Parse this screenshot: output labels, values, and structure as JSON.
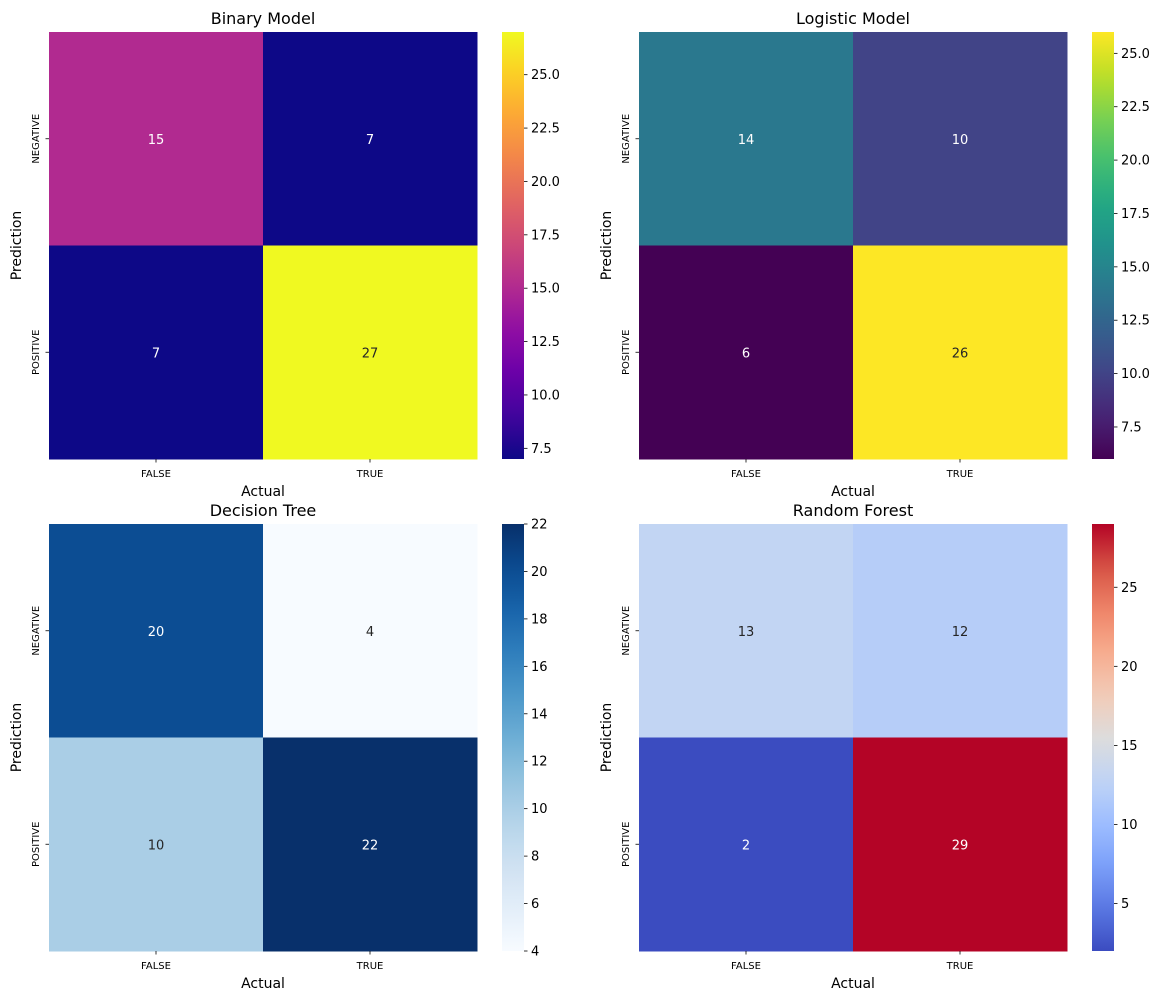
{
  "chart_data": [
    {
      "type": "heatmap",
      "title": "Binary Model",
      "xlabel": "Actual",
      "ylabel": "Prediction",
      "x_categories": [
        "FALSE",
        "TRUE"
      ],
      "y_categories": [
        "NEGATIVE",
        "POSITIVE"
      ],
      "values": [
        [
          15,
          7
        ],
        [
          7,
          27
        ]
      ],
      "colormap": "plasma",
      "colorbar": {
        "min": 7,
        "max": 27,
        "ticks": [
          7.5,
          10.0,
          12.5,
          15.0,
          17.5,
          20.0,
          22.5,
          25.0
        ],
        "tick_labels": [
          "7.5",
          "10.0",
          "12.5",
          "15.0",
          "17.5",
          "20.0",
          "22.5",
          "25.0"
        ]
      }
    },
    {
      "type": "heatmap",
      "title": "Logistic Model",
      "xlabel": "Actual",
      "ylabel": "Prediction",
      "x_categories": [
        "FALSE",
        "TRUE"
      ],
      "y_categories": [
        "NEGATIVE",
        "POSITIVE"
      ],
      "values": [
        [
          14,
          10
        ],
        [
          6,
          26
        ]
      ],
      "colormap": "viridis",
      "colorbar": {
        "min": 6,
        "max": 26,
        "ticks": [
          7.5,
          10.0,
          12.5,
          15.0,
          17.5,
          20.0,
          22.5,
          25.0
        ],
        "tick_labels": [
          "7.5",
          "10.0",
          "12.5",
          "15.0",
          "17.5",
          "20.0",
          "22.5",
          "25.0"
        ]
      }
    },
    {
      "type": "heatmap",
      "title": "Decision Tree",
      "xlabel": "Actual",
      "ylabel": "Prediction",
      "x_categories": [
        "FALSE",
        "TRUE"
      ],
      "y_categories": [
        "NEGATIVE",
        "POSITIVE"
      ],
      "values": [
        [
          20,
          4
        ],
        [
          10,
          22
        ]
      ],
      "colormap": "Blues",
      "colorbar": {
        "min": 4,
        "max": 22,
        "ticks": [
          4,
          6,
          8,
          10,
          12,
          14,
          16,
          18,
          20,
          22
        ],
        "tick_labels": [
          "4",
          "6",
          "8",
          "10",
          "12",
          "14",
          "16",
          "18",
          "20",
          "22"
        ]
      }
    },
    {
      "type": "heatmap",
      "title": "Random Forest",
      "xlabel": "Actual",
      "ylabel": "Prediction",
      "x_categories": [
        "FALSE",
        "TRUE"
      ],
      "y_categories": [
        "NEGATIVE",
        "POSITIVE"
      ],
      "values": [
        [
          13,
          12
        ],
        [
          2,
          29
        ]
      ],
      "colormap": "coolwarm",
      "colorbar": {
        "min": 2,
        "max": 29,
        "ticks": [
          5,
          10,
          15,
          20,
          25
        ],
        "tick_labels": [
          "5",
          "10",
          "15",
          "20",
          "25"
        ]
      }
    }
  ]
}
